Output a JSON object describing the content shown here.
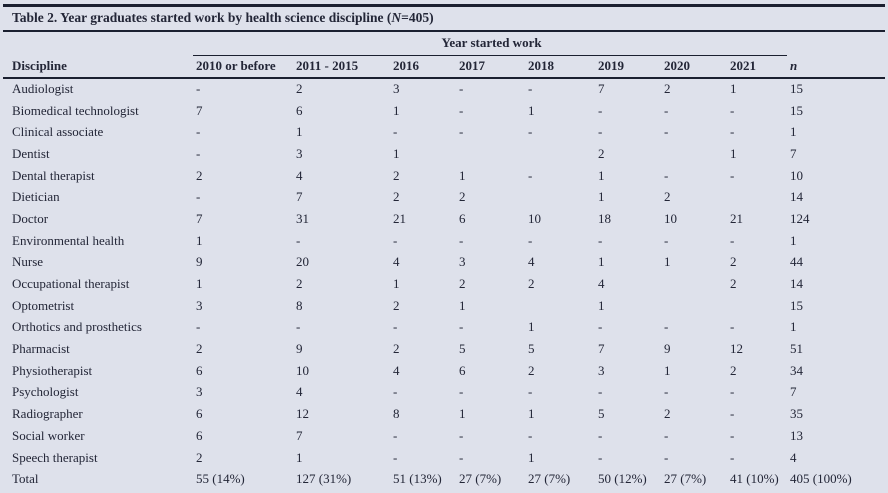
{
  "table": {
    "title": {
      "prefix": "Table 2. Year graduates started work by health science discipline (",
      "n": "N",
      "suffix": "=405)"
    },
    "span_header": "Year started work",
    "columns": [
      "Discipline",
      "2010 or before",
      "2011 - 2015",
      "2016",
      "2017",
      "2018",
      "2019",
      "2020",
      "2021",
      "n"
    ],
    "rows": [
      {
        "discipline": "Audiologist",
        "values": [
          "-",
          "2",
          "3",
          "-",
          "-",
          "7",
          "2",
          "1",
          "15"
        ]
      },
      {
        "discipline": "Biomedical technologist",
        "values": [
          "7",
          "6",
          "1",
          "-",
          "1",
          "-",
          "-",
          "-",
          "15"
        ]
      },
      {
        "discipline": "Clinical associate",
        "values": [
          "-",
          "1",
          "-",
          "-",
          "-",
          "-",
          "-",
          "-",
          "1"
        ]
      },
      {
        "discipline": "Dentist",
        "values": [
          "-",
          "3",
          "1",
          "",
          "",
          "2",
          "",
          "1",
          "7"
        ]
      },
      {
        "discipline": "Dental therapist",
        "values": [
          "2",
          "4",
          "2",
          "1",
          "-",
          "1",
          "-",
          "-",
          "10"
        ]
      },
      {
        "discipline": "Dietician",
        "values": [
          "-",
          "7",
          "2",
          "2",
          "",
          "1",
          "2",
          "",
          "14"
        ]
      },
      {
        "discipline": "Doctor",
        "values": [
          "7",
          "31",
          "21",
          "6",
          "10",
          "18",
          "10",
          "21",
          "124"
        ]
      },
      {
        "discipline": "Environmental health",
        "values": [
          "1",
          "-",
          "-",
          "-",
          "-",
          "-",
          "-",
          "-",
          "1"
        ]
      },
      {
        "discipline": "Nurse",
        "values": [
          "9",
          "20",
          "4",
          "3",
          "4",
          "1",
          "1",
          "2",
          "44"
        ]
      },
      {
        "discipline": "Occupational therapist",
        "values": [
          "1",
          "2",
          "1",
          "2",
          "2",
          "4",
          "",
          "2",
          "14"
        ]
      },
      {
        "discipline": "Optometrist",
        "values": [
          "3",
          "8",
          "2",
          "1",
          "",
          "1",
          "",
          "",
          "15"
        ]
      },
      {
        "discipline": "Orthotics and prosthetics",
        "values": [
          "-",
          "-",
          "-",
          "-",
          "1",
          "-",
          "-",
          "-",
          "1"
        ]
      },
      {
        "discipline": "Pharmacist",
        "values": [
          "2",
          "9",
          "2",
          "5",
          "5",
          "7",
          "9",
          "12",
          "51"
        ]
      },
      {
        "discipline": "Physiotherapist",
        "values": [
          "6",
          "10",
          "4",
          "6",
          "2",
          "3",
          "1",
          "2",
          "34"
        ]
      },
      {
        "discipline": "Psychologist",
        "values": [
          "3",
          "4",
          "-",
          "-",
          "-",
          "-",
          "-",
          "-",
          "7"
        ]
      },
      {
        "discipline": "Radiographer",
        "values": [
          "6",
          "12",
          "8",
          "1",
          "1",
          "5",
          "2",
          "-",
          "35"
        ]
      },
      {
        "discipline": "Social worker",
        "values": [
          "6",
          "7",
          "-",
          "-",
          "-",
          "-",
          "-",
          "-",
          "13"
        ]
      },
      {
        "discipline": "Speech therapist",
        "values": [
          "2",
          "1",
          "-",
          "-",
          "1",
          "-",
          "-",
          "-",
          "4"
        ]
      }
    ],
    "total": {
      "label": "Total",
      "values": [
        "55 (14%)",
        "127 (31%)",
        "51 (13%)",
        "27 (7%)",
        "27 (7%)",
        "50 (12%)",
        "27 (7%)",
        "41 (10%)",
        "405 (100%)"
      ]
    }
  },
  "colors": {
    "background": "#dee1eb",
    "rule": "#1b2030",
    "text": "#232637"
  }
}
